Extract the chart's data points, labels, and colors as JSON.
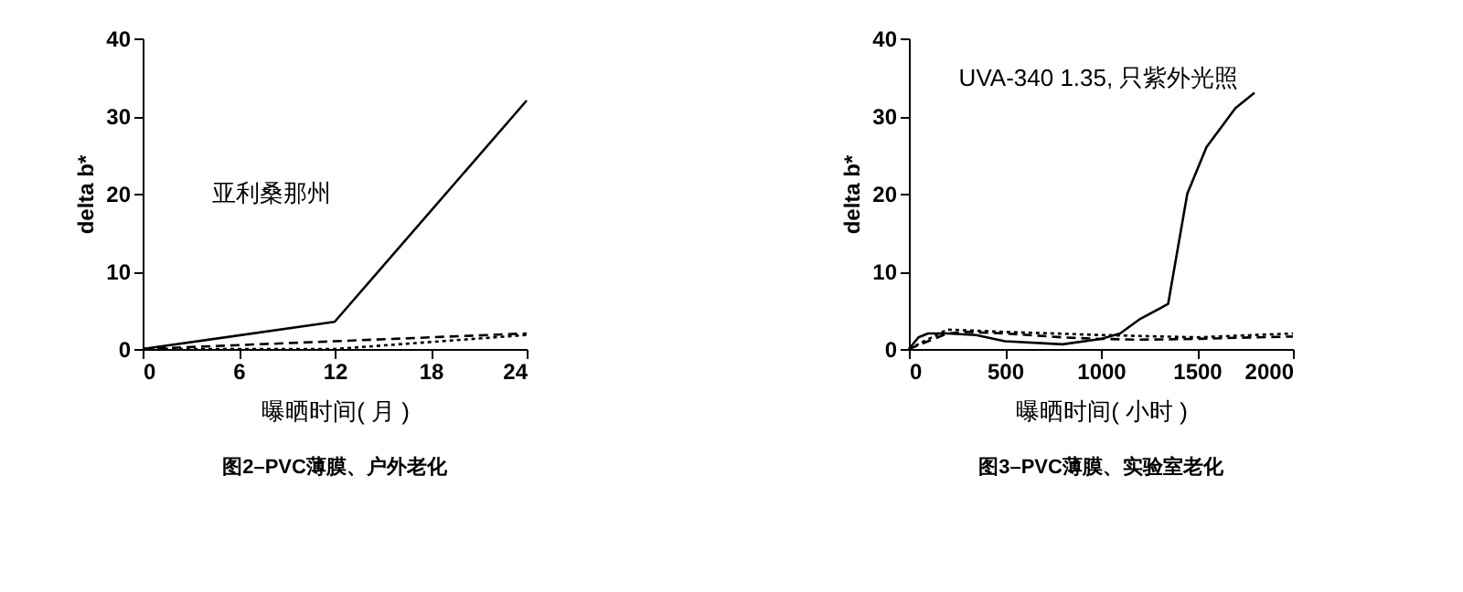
{
  "chart_data": [
    {
      "type": "line",
      "title": "图2–PVC薄膜、户外老化",
      "xlabel": "曝晒时间( 月 )",
      "ylabel": "delta  b*",
      "annotations": [
        "亚利桑那州"
      ],
      "xlim": [
        0,
        24
      ],
      "xticks": [
        0,
        6,
        12,
        18,
        24
      ],
      "ylim": [
        0,
        40
      ],
      "yticks": [
        0,
        10,
        20,
        30,
        40
      ],
      "series": [
        {
          "color": "#000000",
          "line_style": "solid",
          "x": [
            0,
            12,
            24
          ],
          "values": [
            0,
            3.5,
            32
          ]
        },
        {
          "color": "#000000",
          "line_style": "dashed",
          "x": [
            0,
            12,
            24
          ],
          "values": [
            0,
            1,
            2
          ]
        },
        {
          "color": "#000000",
          "line_style": "dotted",
          "x": [
            0,
            12,
            24
          ],
          "values": [
            0,
            0,
            1.8
          ]
        }
      ]
    },
    {
      "type": "line",
      "title": "图3–PVC薄膜、实验室老化",
      "xlabel": "曝晒时间( 小时 )",
      "ylabel": "delta  b*",
      "annotations": [
        "UVA-340  1.35,  只紫外光照"
      ],
      "xlim": [
        0,
        2000
      ],
      "xticks": [
        0,
        500,
        1000,
        1500,
        2000
      ],
      "ylim": [
        0,
        40
      ],
      "yticks": [
        0,
        10,
        20,
        30,
        40
      ],
      "series": [
        {
          "color": "#000000",
          "line_style": "solid",
          "x": [
            0,
            50,
            100,
            200,
            350,
            500,
            800,
            1000,
            1100,
            1200,
            1350,
            1450,
            1550,
            1700,
            1800
          ],
          "values": [
            0,
            1.5,
            2,
            2,
            1.8,
            1,
            0.6,
            1.3,
            2,
            3.8,
            5.8,
            20,
            26,
            31,
            33
          ]
        },
        {
          "color": "#000000",
          "line_style": "dashed",
          "x": [
            0,
            100,
            200,
            300,
            500,
            800,
            1000,
            1200,
            1500,
            1800,
            2000
          ],
          "values": [
            0,
            1,
            2,
            2.2,
            2,
            1.5,
            1.3,
            1.2,
            1.3,
            1.5,
            1.6
          ]
        },
        {
          "color": "#000000",
          "line_style": "dotted",
          "x": [
            0,
            200,
            500,
            1000,
            1500,
            2000
          ],
          "values": [
            0,
            2.5,
            2.2,
            1.8,
            1.5,
            2
          ]
        }
      ]
    }
  ]
}
